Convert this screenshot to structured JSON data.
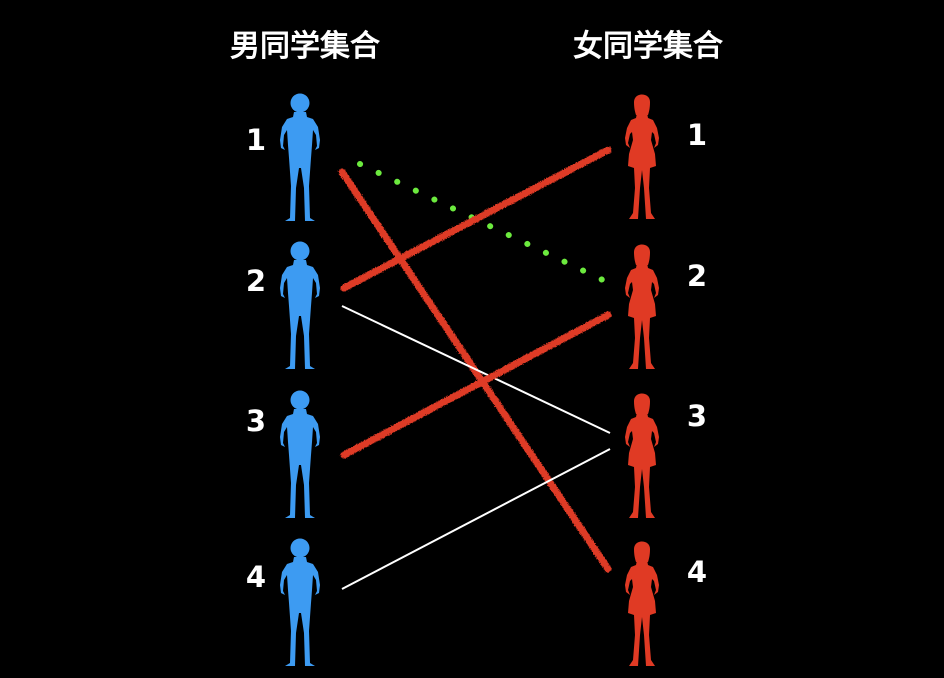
{
  "colors": {
    "background": "#000000",
    "male": "#3d9bf2",
    "female": "#e03a24",
    "text": "#ffffff",
    "crossed_edge": "#de3a28",
    "dotted_edge": "#6cea3e",
    "plain_edge": "#ffffff"
  },
  "left_set": {
    "title": "男同学集合",
    "icon": "male-silhouette-icon",
    "members": [
      {
        "label": "1"
      },
      {
        "label": "2"
      },
      {
        "label": "3"
      },
      {
        "label": "4"
      }
    ]
  },
  "right_set": {
    "title": "女同学集合",
    "icon": "female-silhouette-icon",
    "members": [
      {
        "label": "1"
      },
      {
        "label": "2"
      },
      {
        "label": "3"
      },
      {
        "label": "4"
      }
    ]
  },
  "edges": [
    {
      "from": "1",
      "to": "2",
      "style": "dotted"
    },
    {
      "from": "1",
      "to": "4",
      "style": "crossed-out"
    },
    {
      "from": "2",
      "to": "1",
      "style": "crossed-out"
    },
    {
      "from": "2",
      "to": "3",
      "style": "plain"
    },
    {
      "from": "3",
      "to": "2",
      "style": "crossed-out"
    },
    {
      "from": "4",
      "to": "3",
      "style": "plain"
    }
  ]
}
